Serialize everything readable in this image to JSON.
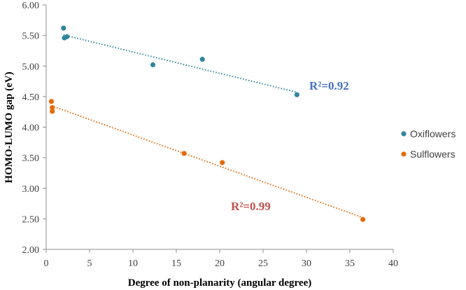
{
  "chart_data": {
    "type": "scatter",
    "title": "",
    "xlabel": "Degree of non-planarity (angular degree)",
    "ylabel": "HOMO-LUMO gap (eV)",
    "xlim": [
      0,
      40
    ],
    "ylim": [
      2.0,
      6.0
    ],
    "x_ticks": [
      "0",
      "5",
      "10",
      "15",
      "20",
      "25",
      "30",
      "35",
      "40"
    ],
    "y_ticks": [
      "2.00",
      "2.50",
      "3.00",
      "3.50",
      "4.00",
      "4.50",
      "5.00",
      "5.50",
      "6.00"
    ],
    "grid": false,
    "legend_position": "right",
    "series": [
      {
        "name": "Oxiflowers",
        "color": "#31859C",
        "x": [
          2.0,
          2.1,
          2.4,
          12.3,
          18.0,
          28.9
        ],
        "y": [
          5.62,
          5.46,
          5.48,
          5.02,
          5.11,
          4.53
        ],
        "trendline": {
          "x": [
            2.0,
            28.9
          ],
          "y": [
            5.51,
            4.57
          ]
        },
        "r2_label": "R²=0.92",
        "r2_color": "#4472C4"
      },
      {
        "name": "Sulflowers",
        "color": "#E46C0A",
        "x": [
          0.6,
          0.7,
          0.7,
          15.9,
          20.3,
          36.5
        ],
        "y": [
          4.42,
          4.32,
          4.26,
          3.57,
          3.42,
          2.49
        ],
        "trendline": {
          "x": [
            0.6,
            36.5
          ],
          "y": [
            4.35,
            2.52
          ]
        },
        "r2_label": "R²=0.99",
        "r2_color": "#C0504D"
      }
    ]
  }
}
